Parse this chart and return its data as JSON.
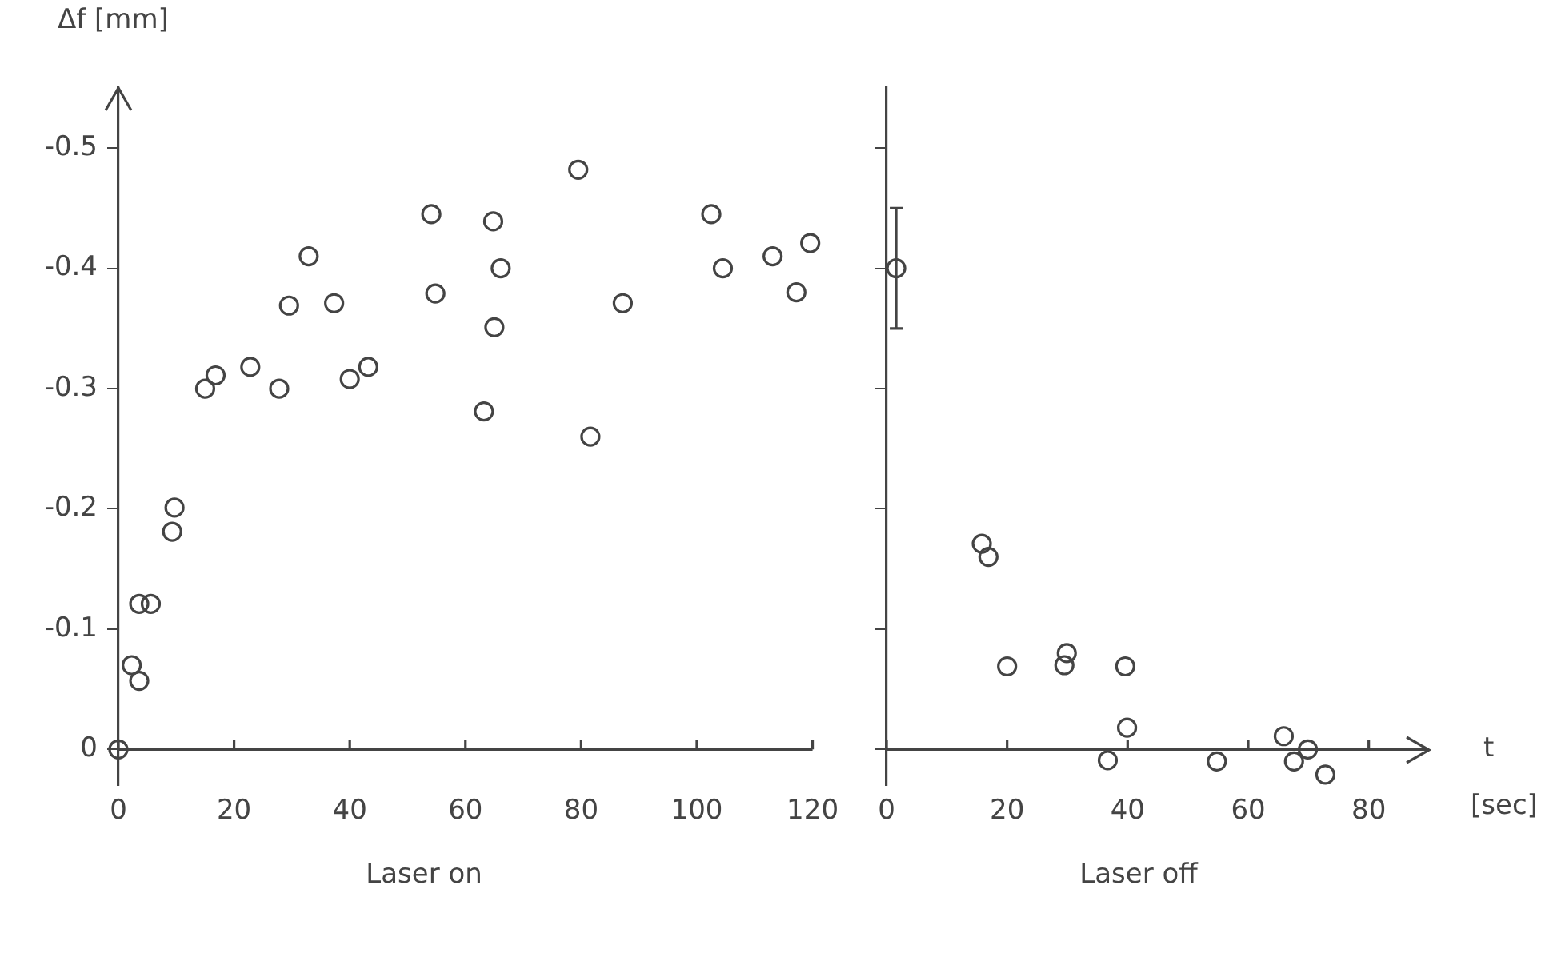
{
  "chart_data": [
    {
      "type": "scatter",
      "title": "Laser on",
      "ylabel": "Δf [mm]",
      "marker": "circle",
      "grid": false,
      "legend": false,
      "xlim": [
        0,
        120
      ],
      "xticks": [
        0,
        20,
        40,
        60,
        80,
        100,
        120
      ],
      "ylim": [
        0.03,
        -0.55
      ],
      "yticks": [
        0,
        -0.1,
        -0.2,
        -0.3,
        -0.4,
        -0.5
      ],
      "series": [
        {
          "color": "#444444",
          "x": [
            0,
            2.3,
            3.6,
            3.6,
            5.6,
            9.3,
            9.7,
            15,
            16.8,
            22.8,
            27.8,
            29.5,
            32.9,
            37.3,
            40,
            43.2,
            54.1,
            54.8,
            63.2,
            64.8,
            65,
            66.1,
            79.5,
            81.6,
            87.2,
            102.5,
            104.5,
            113.1,
            117.2,
            119.6
          ],
          "values": [
            0,
            -0.07,
            -0.057,
            -0.121,
            -0.121,
            -0.181,
            -0.201,
            -0.3,
            -0.311,
            -0.318,
            -0.3,
            -0.369,
            -0.41,
            -0.371,
            -0.308,
            -0.318,
            -0.445,
            -0.379,
            -0.281,
            -0.439,
            -0.351,
            -0.4,
            -0.482,
            -0.26,
            -0.371,
            -0.445,
            -0.4,
            -0.41,
            -0.38,
            -0.421
          ]
        }
      ]
    },
    {
      "type": "scatter",
      "title": "Laser off",
      "xlabel": "t",
      "annotations": [
        "[sec]"
      ],
      "marker": "circle",
      "grid": false,
      "legend": false,
      "tick_labels": "x",
      "xlim": [
        0,
        90
      ],
      "xticks": [
        0,
        20,
        40,
        60,
        80
      ],
      "ylim": [
        0.03,
        -0.55
      ],
      "yticks": [
        0,
        -0.1,
        -0.2,
        -0.3,
        -0.4,
        -0.5
      ],
      "series": [
        {
          "color": "#444444",
          "x": [
            1.6,
            15.8,
            16.9,
            20,
            29.5,
            29.9,
            39.6,
            39.9,
            36.7,
            54.8,
            65.9,
            67.6,
            69.9,
            72.8
          ],
          "values": [
            -0.4,
            -0.171,
            -0.16,
            -0.069,
            -0.07,
            -0.08,
            -0.069,
            -0.018,
            0.009,
            0.01,
            -0.011,
            0.01,
            0,
            0.021
          ],
          "errors": [
            0.05,
            null,
            null,
            null,
            null,
            null,
            null,
            null,
            null,
            null,
            null,
            null,
            null,
            null
          ]
        }
      ]
    }
  ]
}
